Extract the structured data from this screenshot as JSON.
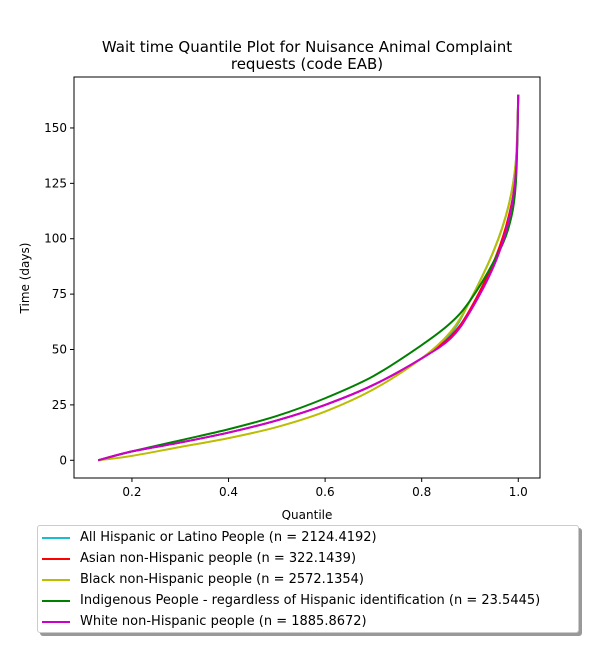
{
  "chart_data": {
    "type": "line",
    "title": "Wait time Quantile Plot for Nuisance Animal Complaint requests (code EAB)",
    "title_lines": [
      "Wait time Quantile Plot for Nuisance Animal Complaint",
      "requests (code EAB)"
    ],
    "xlabel": "Quantile",
    "ylabel": "Time (days)",
    "xlim": [
      0.08,
      1.045
    ],
    "ylim": [
      -8,
      173
    ],
    "xticks": [
      0.2,
      0.4,
      0.6,
      0.8,
      1.0
    ],
    "xtick_labels": [
      "0.2",
      "0.4",
      "0.6",
      "0.8",
      "1.0"
    ],
    "yticks": [
      0,
      25,
      50,
      75,
      100,
      125,
      150
    ],
    "ytick_labels": [
      "0",
      "25",
      "50",
      "75",
      "100",
      "125",
      "150"
    ],
    "grid": false,
    "legend_position": "below",
    "series": [
      {
        "name": "All Hispanic or Latino People (n = 2124.4192)",
        "color": "#17becf",
        "x": [
          0.13,
          0.2,
          0.3,
          0.4,
          0.5,
          0.6,
          0.7,
          0.8,
          0.86,
          0.9,
          0.95,
          0.98,
          0.995,
          1.0
        ],
        "y": [
          0,
          4,
          8,
          12.5,
          18,
          25,
          34,
          46,
          57,
          72,
          95,
          115,
          135,
          165
        ]
      },
      {
        "name": "Asian non-Hispanic people (n = 322.1439)",
        "color": "#ff0000",
        "x": [
          0.13,
          0.2,
          0.3,
          0.4,
          0.5,
          0.6,
          0.7,
          0.8,
          0.86,
          0.9,
          0.95,
          0.98,
          0.995,
          1.0
        ],
        "y": [
          0,
          4,
          8,
          12.5,
          18,
          25,
          34,
          46,
          56,
          68,
          90,
          110,
          130,
          165
        ]
      },
      {
        "name": "Black non-Hispanic people (n = 2572.1354)",
        "color": "#bcbd00",
        "x": [
          0.13,
          0.2,
          0.3,
          0.4,
          0.5,
          0.6,
          0.7,
          0.8,
          0.86,
          0.9,
          0.95,
          0.98,
          0.995,
          1.0
        ],
        "y": [
          0,
          2,
          6,
          10,
          15,
          22,
          32,
          46,
          58,
          72,
          95,
          115,
          135,
          165
        ]
      },
      {
        "name": "Indigenous People - regardless of Hispanic identification (n = 23.5445)",
        "color": "#008000",
        "x": [
          0.13,
          0.2,
          0.3,
          0.4,
          0.5,
          0.6,
          0.7,
          0.8,
          0.86,
          0.9,
          0.95,
          0.98,
          0.995,
          1.0
        ],
        "y": [
          0,
          4,
          9,
          14,
          20,
          28,
          38,
          52,
          62,
          72,
          90,
          105,
          125,
          165
        ]
      },
      {
        "name": "White non-Hispanic people (n = 1885.8672)",
        "color": "#cc00cc",
        "x": [
          0.13,
          0.2,
          0.3,
          0.4,
          0.5,
          0.6,
          0.7,
          0.8,
          0.86,
          0.9,
          0.95,
          0.98,
          0.995,
          1.0
        ],
        "y": [
          0,
          4,
          8,
          12.5,
          18,
          25,
          34,
          46,
          55,
          67,
          88,
          108,
          130,
          165
        ]
      }
    ]
  }
}
